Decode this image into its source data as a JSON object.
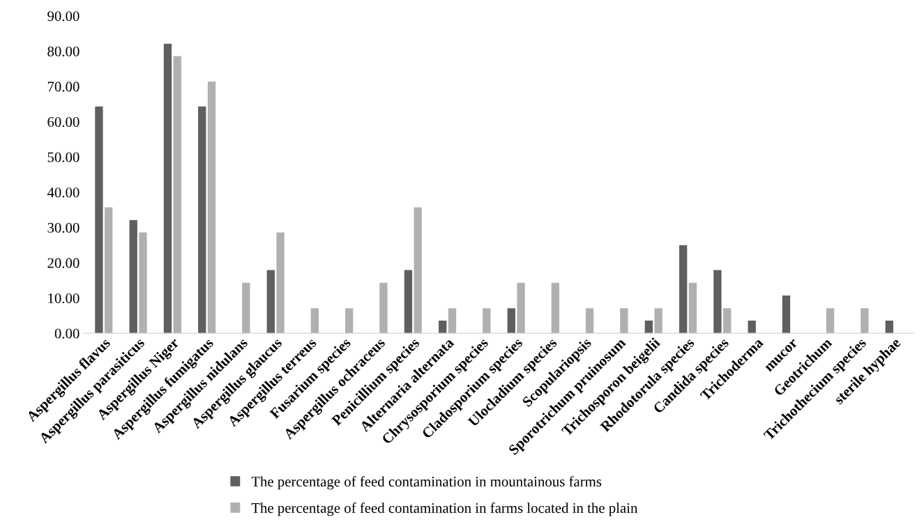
{
  "chart_data": {
    "type": "bar",
    "categories": [
      "Aspergillus flavus",
      "Aspergillus parasiticus",
      "Aspergillus Niger",
      "Aspergillus fumigatus",
      "Aspergillus nidulans",
      "Aspergillus glaucus",
      "Aspergillus terreus",
      "Fusarium species",
      "Aspergillus ochraceus",
      "Penicillium species",
      "Alternaria alternata",
      "Chrysosporium species",
      "Cladosporium species",
      "Ulocladium species",
      "Scopulariopsis",
      "Sporotrichum pruinosum",
      "Trichosporon beigelii",
      "Rhodotorula species",
      "Candida species",
      "Trichoderma",
      "mucor",
      "Geotrichum",
      "Trichothecium species",
      "sterile hyphae"
    ],
    "series": [
      {
        "name": "The percentage of feed contamination in mountainous farms",
        "color": "#5f5f5f",
        "values": [
          64.3,
          32.1,
          82.1,
          64.3,
          0,
          17.9,
          0,
          0,
          0,
          17.9,
          3.6,
          0,
          7.1,
          0,
          0,
          0,
          3.6,
          25.0,
          17.9,
          3.6,
          10.7,
          0,
          0,
          3.6
        ]
      },
      {
        "name": "The percentage of feed contamination in farms located in the plain",
        "color": "#b0b0b0",
        "values": [
          35.7,
          28.6,
          78.6,
          71.4,
          14.3,
          28.6,
          7.1,
          7.1,
          14.3,
          35.7,
          7.1,
          7.1,
          14.3,
          14.3,
          7.1,
          7.1,
          7.1,
          14.3,
          7.1,
          0,
          0,
          7.1,
          7.1,
          0
        ]
      }
    ],
    "ylim": [
      0,
      90
    ],
    "yticks": [
      {
        "value": 0,
        "label": "0.00"
      },
      {
        "value": 10,
        "label": "10.00"
      },
      {
        "value": 20,
        "label": "20.00"
      },
      {
        "value": 30,
        "label": "30.00"
      },
      {
        "value": 40,
        "label": "40.00"
      },
      {
        "value": 50,
        "label": "50.00"
      },
      {
        "value": 60,
        "label": "60.00"
      },
      {
        "value": 70,
        "label": "70.00"
      },
      {
        "value": 80,
        "label": "80.00"
      },
      {
        "value": 90,
        "label": "90.00"
      }
    ],
    "grid": false,
    "legend": "bottom"
  }
}
